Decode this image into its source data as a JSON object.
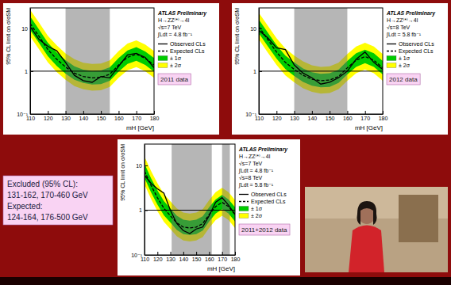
{
  "chart_data": [
    {
      "type": "line",
      "title": "2011 data",
      "annotations": [
        "ATLAS Preliminary",
        "H→ZZ⁽*⁾→4l",
        "√s=7 TeV",
        "∫Ldt = 4.8 fb⁻¹"
      ],
      "x_label": "mH [GeV]",
      "y_label": "95% CL limit on σ/σSM",
      "x": [
        110,
        115,
        120,
        125,
        130,
        135,
        140,
        145,
        150,
        155,
        160,
        165,
        170,
        175,
        180
      ],
      "series": [
        {
          "name": "Observed CLs",
          "color": "#000000",
          "line_style": "solid",
          "values": [
            11,
            5.5,
            3.8,
            3.0,
            1.6,
            0.8,
            0.6,
            0.55,
            0.75,
            0.7,
            1.3,
            2.4,
            2.6,
            2.1,
            1.2
          ]
        },
        {
          "name": "Expected CLs",
          "color": "#000000",
          "line_style": "dashed",
          "values": [
            13,
            6.5,
            3.2,
            1.9,
            1.25,
            0.9,
            0.75,
            0.7,
            0.72,
            0.85,
            1.4,
            2.1,
            2.5,
            2.0,
            1.4
          ]
        },
        {
          "name": "± 1σ",
          "type": "band",
          "color": "#00cc00",
          "lower": [
            9.1,
            4.55,
            2.24,
            1.33,
            0.88,
            0.63,
            0.53,
            0.49,
            0.5,
            0.6,
            0.98,
            1.47,
            1.75,
            1.4,
            0.98
          ],
          "upper": [
            18.9,
            9.4,
            4.6,
            2.75,
            1.8,
            1.3,
            1.09,
            1.02,
            1.04,
            1.23,
            2.03,
            3.05,
            3.63,
            2.9,
            2.03
          ]
        },
        {
          "name": "± 2σ",
          "type": "band",
          "color": "#ffff00",
          "lower": [
            6.5,
            3.25,
            1.6,
            0.95,
            0.63,
            0.45,
            0.38,
            0.35,
            0.36,
            0.43,
            0.7,
            1.05,
            1.25,
            1.0,
            0.7
          ],
          "upper": [
            27,
            13.7,
            6.7,
            4.0,
            2.6,
            1.9,
            1.58,
            1.47,
            1.51,
            1.79,
            2.94,
            4.4,
            5.25,
            4.2,
            2.94
          ]
        }
      ],
      "shaded_ranges": [
        [
          130,
          155
        ]
      ],
      "reference": 1,
      "log": "y",
      "xlim": [
        110,
        180
      ],
      "xticks": [
        110,
        120,
        130,
        140,
        150,
        160,
        170,
        180
      ],
      "ylim": [
        0.1,
        30
      ],
      "yticks": [
        {
          "value": 0.1,
          "label": "10⁻¹"
        },
        1,
        10
      ]
    },
    {
      "type": "line",
      "title": "2012 data",
      "annotations": [
        "ATLAS Preliminary",
        "H→ZZ⁽*⁾→4l",
        "√s=8 TeV",
        "∫Ldt = 5.8 fb⁻¹"
      ],
      "x_label": "mH [GeV]",
      "y_label": "95% CL limit on σ/σSM",
      "x": [
        110,
        115,
        120,
        125,
        130,
        135,
        140,
        145,
        150,
        155,
        160,
        165,
        170,
        175,
        180
      ],
      "series": [
        {
          "name": "Observed CLs",
          "color": "#000000",
          "line_style": "solid",
          "values": [
            9,
            6,
            3.5,
            3.2,
            1.4,
            0.9,
            0.7,
            0.5,
            0.55,
            0.7,
            1.0,
            1.9,
            2.8,
            1.6,
            1.1
          ]
        },
        {
          "name": "Expected CLs",
          "color": "#000000",
          "line_style": "dashed",
          "values": [
            11,
            5.5,
            2.8,
            1.6,
            1.1,
            0.8,
            0.65,
            0.6,
            0.62,
            0.75,
            1.2,
            1.8,
            2.2,
            1.8,
            1.2
          ]
        },
        {
          "name": "± 1σ",
          "type": "band",
          "color": "#00cc00",
          "lower": [
            7.7,
            3.85,
            1.96,
            1.12,
            0.77,
            0.56,
            0.46,
            0.42,
            0.43,
            0.53,
            0.84,
            1.26,
            1.54,
            1.26,
            0.84
          ],
          "upper": [
            16,
            8.0,
            4.06,
            2.32,
            1.6,
            1.16,
            0.94,
            0.87,
            0.9,
            1.09,
            1.74,
            2.61,
            3.19,
            2.61,
            1.74
          ]
        },
        {
          "name": "± 2σ",
          "type": "band",
          "color": "#ffff00",
          "lower": [
            5.5,
            2.75,
            1.4,
            0.8,
            0.55,
            0.4,
            0.33,
            0.3,
            0.31,
            0.38,
            0.6,
            0.9,
            1.1,
            0.9,
            0.6
          ],
          "upper": [
            23,
            11.6,
            5.9,
            3.4,
            2.3,
            1.7,
            1.37,
            1.26,
            1.3,
            1.58,
            2.52,
            3.78,
            4.62,
            3.78,
            2.52
          ]
        }
      ],
      "shaded_ranges": [
        [
          130,
          160
        ]
      ],
      "reference": 1,
      "log": "y",
      "xlim": [
        110,
        180
      ],
      "xticks": [
        110,
        120,
        130,
        140,
        150,
        160,
        170,
        180
      ],
      "ylim": [
        0.1,
        30
      ],
      "yticks": [
        {
          "value": 0.1,
          "label": "10⁻¹"
        },
        1,
        10
      ]
    },
    {
      "type": "line",
      "title": "2011+2012 data",
      "annotations": [
        "ATLAS Preliminary",
        "H→ZZ⁽*⁾→4l",
        "√s=7 TeV",
        "∫Ldt = 4.8 fb⁻¹",
        "√s=8 TeV",
        "∫Ldt = 5.8 fb⁻¹"
      ],
      "x_label": "mH [GeV]",
      "y_label": "95% CL limit on σ/σSM",
      "x": [
        110,
        115,
        120,
        125,
        130,
        135,
        140,
        145,
        150,
        155,
        160,
        165,
        170,
        175,
        180
      ],
      "series": [
        {
          "name": "Observed CLs",
          "color": "#000000",
          "line_style": "solid",
          "values": [
            6,
            4,
            3.0,
            2.4,
            1.0,
            0.5,
            0.35,
            0.3,
            0.38,
            0.42,
            0.75,
            1.5,
            1.9,
            1.3,
            0.8
          ]
        },
        {
          "name": "Expected CLs",
          "color": "#000000",
          "line_style": "dashed",
          "values": [
            7.5,
            3.6,
            1.9,
            1.1,
            0.75,
            0.52,
            0.42,
            0.4,
            0.42,
            0.5,
            0.8,
            1.2,
            1.5,
            1.2,
            0.8
          ]
        },
        {
          "name": "± 1σ",
          "type": "band",
          "color": "#00cc00",
          "lower": [
            5.25,
            2.52,
            1.33,
            0.77,
            0.53,
            0.36,
            0.29,
            0.28,
            0.29,
            0.35,
            0.56,
            0.84,
            1.05,
            0.84,
            0.56
          ],
          "upper": [
            10.9,
            5.2,
            2.76,
            1.6,
            1.09,
            0.75,
            0.61,
            0.58,
            0.61,
            0.73,
            1.16,
            1.74,
            2.18,
            1.74,
            1.16
          ]
        },
        {
          "name": "± 2σ",
          "type": "band",
          "color": "#ffff00",
          "lower": [
            3.75,
            1.8,
            0.95,
            0.55,
            0.38,
            0.26,
            0.21,
            0.2,
            0.21,
            0.25,
            0.4,
            0.6,
            0.75,
            0.6,
            0.4
          ],
          "upper": [
            15.8,
            7.6,
            4.0,
            2.3,
            1.58,
            1.09,
            0.88,
            0.84,
            0.88,
            1.05,
            1.68,
            2.52,
            3.15,
            2.52,
            1.68
          ]
        }
      ],
      "shaded_ranges": [
        [
          131,
          162
        ],
        [
          170,
          176
        ]
      ],
      "reference": 1,
      "log": "y",
      "xlim": [
        110,
        180
      ],
      "xticks": [
        110,
        120,
        130,
        140,
        150,
        160,
        170,
        180
      ],
      "ylim": [
        0.1,
        30
      ],
      "yticks": [
        {
          "value": 0.1,
          "label": "10⁻¹"
        },
        1,
        10
      ]
    }
  ],
  "slide": {
    "excluded_label": "Excluded (95% CL):",
    "excluded": "131-162, 170-460 GeV",
    "expected_label": "Expected:",
    "expected": "124-164, 176-500 GeV"
  }
}
